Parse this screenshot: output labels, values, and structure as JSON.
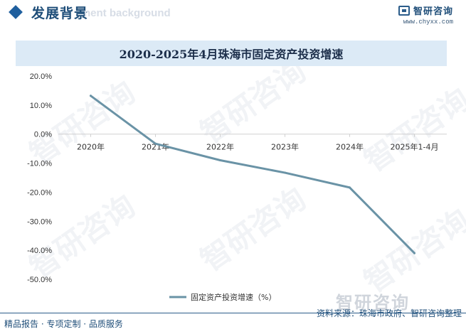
{
  "header": {
    "title": "发展背景",
    "ghost": "nent background"
  },
  "logo": {
    "name": "智研咨询",
    "url": "www.chyxx.com",
    "mark": "logo-mark-icon"
  },
  "watermark": "智研咨询",
  "chart_data": {
    "type": "line",
    "title": "2020-2025年4月珠海市固定资产投资增速",
    "categories": [
      "2020年",
      "2021年",
      "2022年",
      "2023年",
      "2024年",
      "2025年1-4月"
    ],
    "series": [
      {
        "name": "固定资产投资增速（%）",
        "values": [
          13.2,
          -3.3,
          -9.0,
          -13.3,
          -18.4,
          -41.0
        ],
        "color": "#6a93a6"
      }
    ],
    "y_ticks": [
      "20.0%",
      "10.0%",
      "0.0%",
      "-10.0%",
      "-20.0%",
      "-30.0%",
      "-40.0%",
      "-50.0%"
    ],
    "ylim": [
      -50,
      20
    ],
    "grid": false,
    "legend_position": "bottom-center"
  },
  "footer": {
    "left": "精品报告 · 专项定制 · 品质服务",
    "source": "资料来源：珠海市政府、智研咨询整理",
    "logo_text": "智研咨询"
  }
}
